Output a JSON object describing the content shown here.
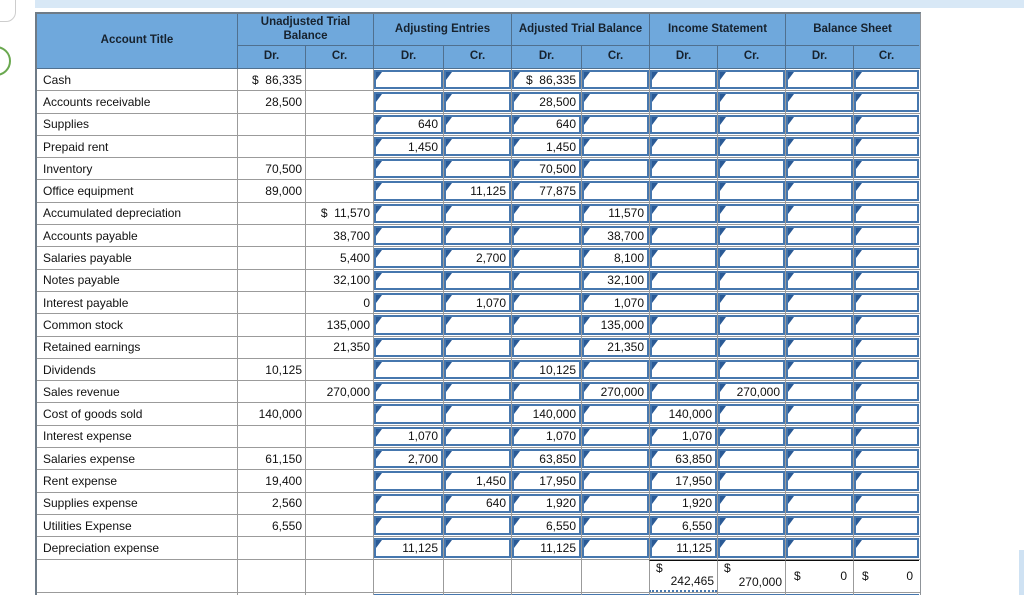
{
  "header": {
    "account_title": "Account Title",
    "groups": [
      "Unadjusted Trial Balance",
      "Adjusting Entries",
      "Adjusted Trial Balance",
      "Income Statement",
      "Balance Sheet"
    ],
    "dr": "Dr.",
    "cr": "Cr."
  },
  "rows": [
    {
      "account": "Cash",
      "values": [
        "$  86,335",
        "",
        "",
        "",
        "$  86,335",
        "",
        "",
        "",
        "",
        ""
      ]
    },
    {
      "account": "Accounts receivable",
      "values": [
        "28,500",
        "",
        "",
        "",
        "28,500",
        "",
        "",
        "",
        "",
        ""
      ]
    },
    {
      "account": "Supplies",
      "values": [
        "",
        "",
        "640",
        "",
        "640",
        "",
        "",
        "",
        "",
        ""
      ]
    },
    {
      "account": "Prepaid rent",
      "values": [
        "",
        "",
        "1,450",
        "",
        "1,450",
        "",
        "",
        "",
        "",
        ""
      ]
    },
    {
      "account": "Inventory",
      "values": [
        "70,500",
        "",
        "",
        "",
        "70,500",
        "",
        "",
        "",
        "",
        ""
      ]
    },
    {
      "account": "Office equipment",
      "values": [
        "89,000",
        "",
        "",
        "11,125",
        "77,875",
        "",
        "",
        "",
        "",
        ""
      ]
    },
    {
      "account": "Accumulated depreciation",
      "values": [
        "",
        "$  11,570",
        "",
        "",
        "",
        "11,570",
        "",
        "",
        "",
        ""
      ]
    },
    {
      "account": "Accounts payable",
      "values": [
        "",
        "38,700",
        "",
        "",
        "",
        "38,700",
        "",
        "",
        "",
        ""
      ]
    },
    {
      "account": "Salaries payable",
      "values": [
        "",
        "5,400",
        "",
        "2,700",
        "",
        "8,100",
        "",
        "",
        "",
        ""
      ]
    },
    {
      "account": "Notes payable",
      "values": [
        "",
        "32,100",
        "",
        "",
        "",
        "32,100",
        "",
        "",
        "",
        ""
      ]
    },
    {
      "account": "Interest payable",
      "values": [
        "",
        "0",
        "",
        "1,070",
        "",
        "1,070",
        "",
        "",
        "",
        ""
      ]
    },
    {
      "account": "Common stock",
      "values": [
        "",
        "135,000",
        "",
        "",
        "",
        "135,000",
        "",
        "",
        "",
        ""
      ]
    },
    {
      "account": "Retained earnings",
      "values": [
        "",
        "21,350",
        "",
        "",
        "",
        "21,350",
        "",
        "",
        "",
        ""
      ]
    },
    {
      "account": "Dividends",
      "values": [
        "10,125",
        "",
        "",
        "",
        "10,125",
        "",
        "",
        "",
        "",
        ""
      ]
    },
    {
      "account": "Sales revenue",
      "values": [
        "",
        "270,000",
        "",
        "",
        "",
        "270,000",
        "",
        "270,000",
        "",
        ""
      ]
    },
    {
      "account": "Cost of goods sold",
      "values": [
        "140,000",
        "",
        "",
        "",
        "140,000",
        "",
        "140,000",
        "",
        "",
        ""
      ]
    },
    {
      "account": "Interest expense",
      "values": [
        "",
        "",
        "1,070",
        "",
        "1,070",
        "",
        "1,070",
        "",
        "",
        ""
      ]
    },
    {
      "account": "Salaries expense",
      "values": [
        "61,150",
        "",
        "2,700",
        "",
        "63,850",
        "",
        "63,850",
        "",
        "",
        ""
      ]
    },
    {
      "account": "Rent expense",
      "values": [
        "19,400",
        "",
        "",
        "1,450",
        "17,950",
        "",
        "17,950",
        "",
        "",
        ""
      ]
    },
    {
      "account": "Supplies expense",
      "values": [
        "2,560",
        "",
        "",
        "640",
        "1,920",
        "",
        "1,920",
        "",
        "",
        ""
      ]
    },
    {
      "account": "Utilities Expense",
      "values": [
        "6,550",
        "",
        "",
        "",
        "6,550",
        "",
        "6,550",
        "",
        "",
        ""
      ]
    },
    {
      "account": "Depreciation expense",
      "values": [
        "",
        "",
        "11,125",
        "",
        "11,125",
        "",
        "11,125",
        "",
        "",
        ""
      ]
    }
  ],
  "totals": {
    "income_dr": {
      "symbol": "$",
      "value": "242,465"
    },
    "income_cr": {
      "symbol": "$",
      "value": "270,000"
    },
    "balance_dr": {
      "symbol": "$",
      "value": "0"
    },
    "balance_cr": {
      "symbol": "$",
      "value": "0"
    }
  },
  "accents": {
    "header_blue": "#6fa8dc",
    "input_border_blue": "#4677ae",
    "flag_blue": "#2a5a96",
    "top_strip_blue": "#d8e8f6",
    "circle_green": "#6aa84f"
  }
}
